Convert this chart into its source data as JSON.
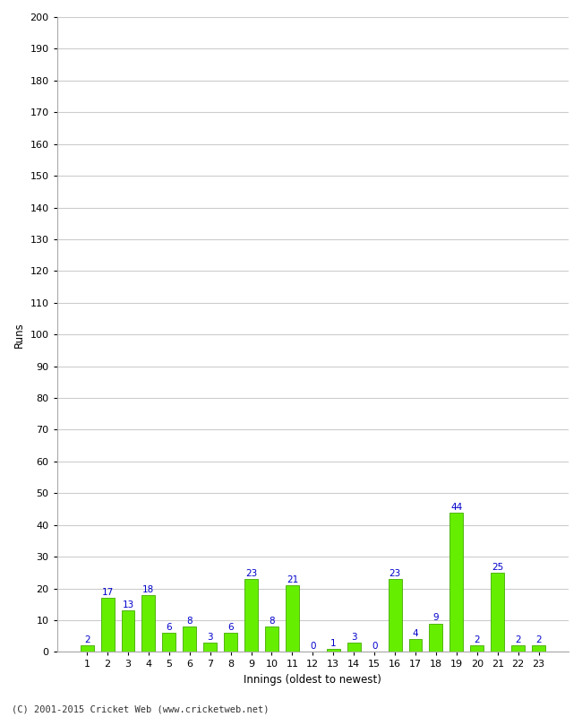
{
  "xlabel": "Innings (oldest to newest)",
  "ylabel": "Runs",
  "values": [
    2,
    17,
    13,
    18,
    6,
    8,
    3,
    6,
    23,
    8,
    21,
    0,
    1,
    3,
    0,
    23,
    4,
    9,
    44,
    2,
    25,
    2,
    2
  ],
  "x_labels": [
    "1",
    "2",
    "3",
    "4",
    "5",
    "6",
    "7",
    "8",
    "9",
    "10",
    "11",
    "12",
    "13",
    "14",
    "15",
    "16",
    "17",
    "18",
    "19",
    "20",
    "21",
    "22",
    "23"
  ],
  "bar_color": "#66ee00",
  "bar_edge_color": "#44aa00",
  "label_color": "#0000cc",
  "background_color": "#ffffff",
  "plot_bg_color": "#ffffff",
  "ylim": [
    0,
    200
  ],
  "yticks": [
    0,
    10,
    20,
    30,
    40,
    50,
    60,
    70,
    80,
    90,
    100,
    110,
    120,
    130,
    140,
    150,
    160,
    170,
    180,
    190,
    200
  ],
  "grid_color": "#cccccc",
  "footer_text": "(C) 2001-2015 Cricket Web (www.cricketweb.net)",
  "label_fontsize": 7.5,
  "axis_label_fontsize": 8.5,
  "tick_fontsize": 8,
  "footer_fontsize": 7.5,
  "bar_width": 0.65
}
